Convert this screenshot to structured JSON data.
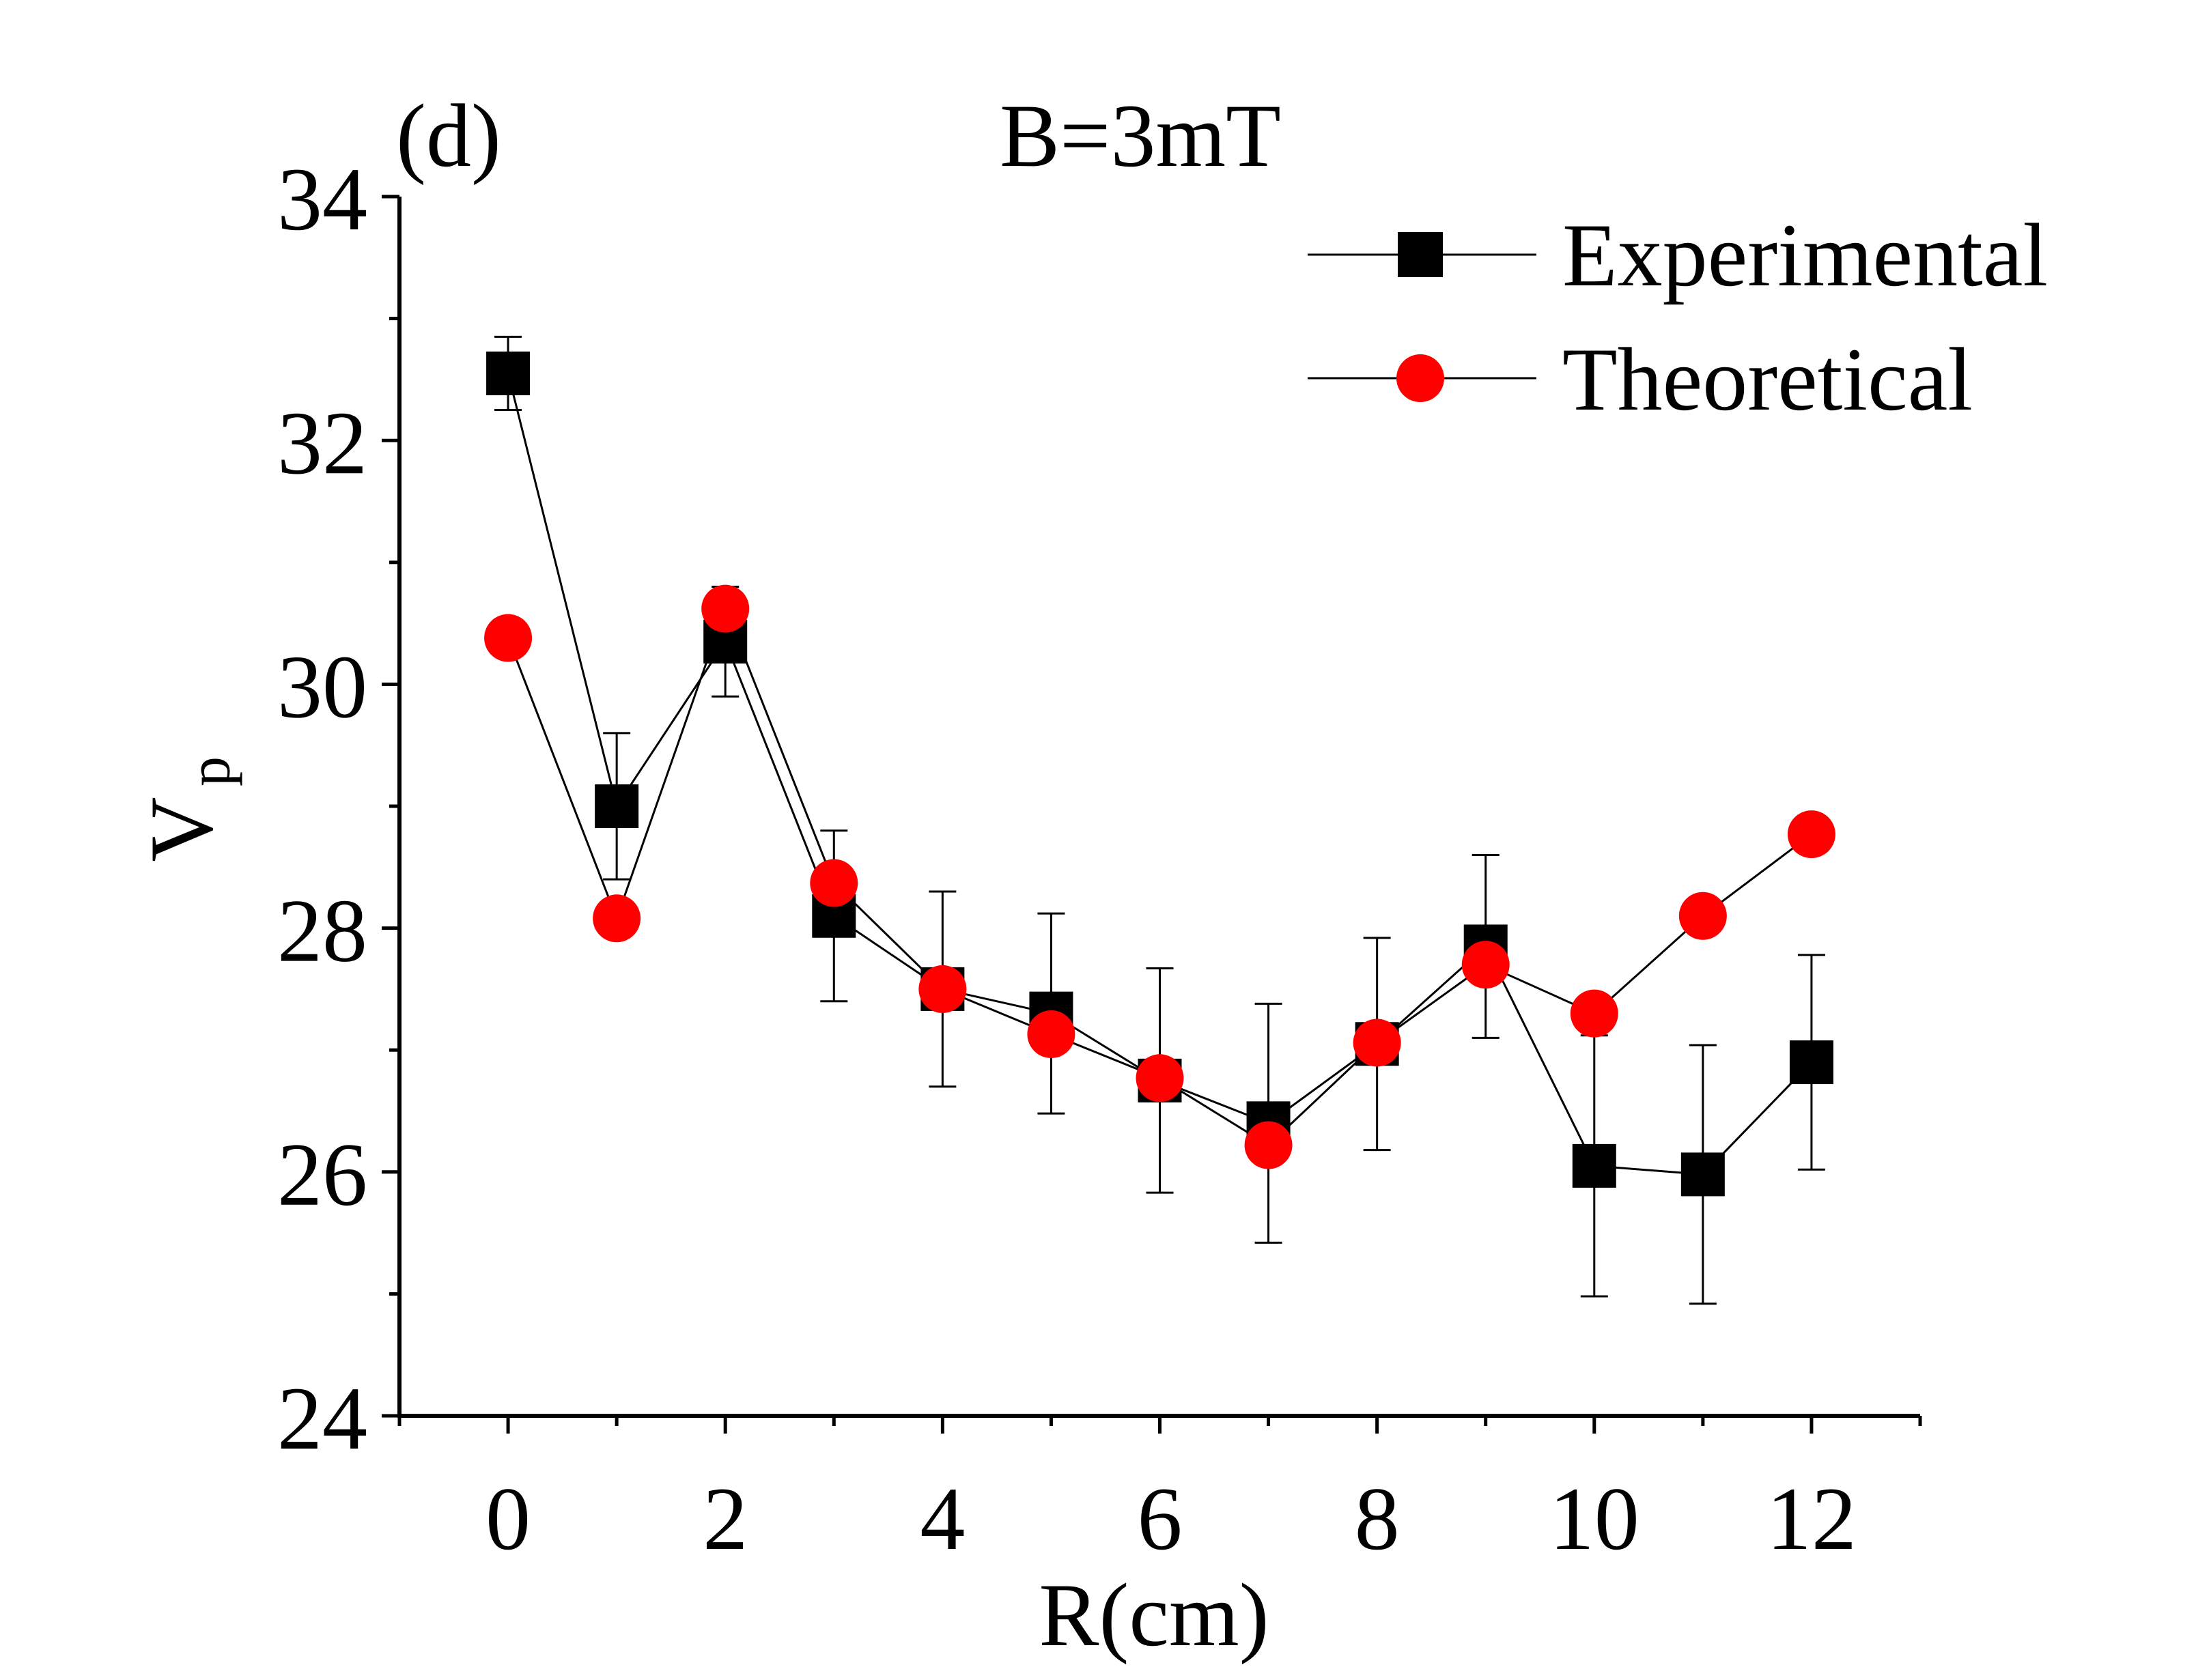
{
  "chart_data": {
    "type": "line",
    "panel_label": "(d)",
    "title": "B=3mT",
    "xlabel": "R(cm)",
    "ylabel": {
      "main": "V",
      "subscript": "p"
    },
    "xlim": [
      -1,
      13
    ],
    "ylim": [
      24,
      34
    ],
    "x_ticks": [
      0,
      2,
      4,
      6,
      8,
      10,
      12
    ],
    "x_tick_labels": [
      "0",
      "2",
      "4",
      "6",
      "8",
      "10",
      "12"
    ],
    "x_minor_ticks": [
      -1,
      1,
      3,
      5,
      7,
      9,
      11,
      13
    ],
    "y_ticks": [
      24,
      26,
      28,
      30,
      32,
      34
    ],
    "y_tick_labels": [
      "24",
      "26",
      "28",
      "30",
      "32",
      "34"
    ],
    "y_minor_ticks": [
      25,
      27,
      29,
      31,
      33
    ],
    "grid": false,
    "legend_position": "top-right",
    "series": [
      {
        "name": "Experimental",
        "marker": "square",
        "color": "#000000",
        "x": [
          0,
          1,
          2,
          3,
          4,
          5,
          6,
          7,
          8,
          9,
          10,
          11,
          12
        ],
        "y": [
          32.55,
          29.0,
          30.35,
          28.1,
          27.5,
          27.3,
          26.75,
          26.4,
          27.05,
          27.85,
          26.05,
          25.98,
          26.9
        ],
        "yerr": [
          0.3,
          0.6,
          0.45,
          0.7,
          0.8,
          0.82,
          0.92,
          0.98,
          0.87,
          0.75,
          1.07,
          1.06,
          0.88
        ]
      },
      {
        "name": "Theoretical",
        "marker": "circle",
        "color": "#ff0000",
        "x": [
          0,
          1,
          2,
          3,
          4,
          5,
          6,
          7,
          8,
          9,
          10,
          11,
          12
        ],
        "y": [
          30.38,
          28.08,
          30.62,
          28.37,
          27.5,
          27.13,
          26.77,
          26.22,
          27.06,
          27.7,
          27.3,
          28.1,
          28.77
        ]
      }
    ]
  }
}
